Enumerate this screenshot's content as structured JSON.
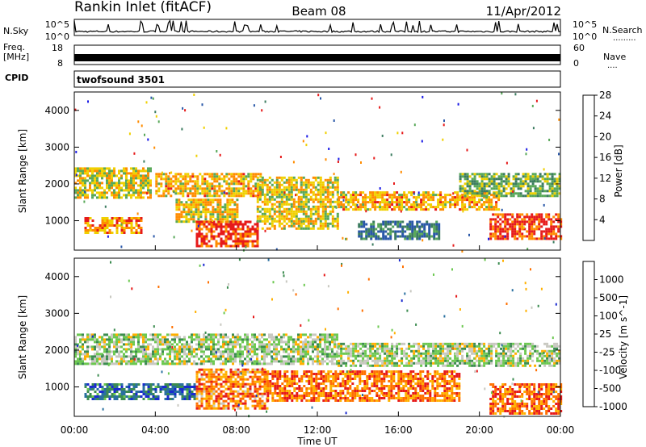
{
  "header": {
    "station": "Rankin Inlet (fitACF)",
    "beam": "Beam 08",
    "date": "11/Apr/2012"
  },
  "noise_panel": {
    "left_label": "N.Sky",
    "left_ticks": [
      "10^5",
      "10^0"
    ],
    "right_label": "N.Search",
    "right_ticks": [
      "10^5",
      "10^0"
    ]
  },
  "freq_panel": {
    "label_line1": "Freq.",
    "label_line2": "[MHz]",
    "left_ticks": [
      "18",
      "8"
    ],
    "right_label": "Nave",
    "right_ticks": [
      "60",
      "0"
    ]
  },
  "cpid_panel": {
    "label": "CPID",
    "program": "twofsound 3501"
  },
  "chart_data": [
    {
      "type": "heatmap",
      "panel": "power",
      "ylabel": "Slant Range [km]",
      "ylim": [
        200,
        4500
      ],
      "yticks": [
        "1000",
        "2000",
        "3000",
        "4000"
      ],
      "colorbar": {
        "label": "Power [dB]",
        "ticks": [
          "4",
          "8",
          "12",
          "16",
          "20",
          "24",
          "28"
        ],
        "colors": [
          "#1a1ae6",
          "#2a58a8",
          "#3c7c60",
          "#58a858",
          "#f0d000",
          "#ff8c00",
          "#e61a1a"
        ]
      },
      "echo_bands": [
        {
          "t0": 0.0,
          "t1": 3.8,
          "r0": 1600,
          "r1": 2450,
          "level": 0.62
        },
        {
          "t0": 0.5,
          "t1": 3.3,
          "r0": 650,
          "r1": 1100,
          "level": 0.78
        },
        {
          "t0": 4.0,
          "t1": 9.2,
          "r0": 1700,
          "r1": 2300,
          "level": 0.7
        },
        {
          "t0": 5.0,
          "t1": 8.0,
          "r0": 1000,
          "r1": 1600,
          "level": 0.66
        },
        {
          "t0": 6.0,
          "t1": 9.0,
          "r0": 300,
          "r1": 1000,
          "level": 0.92
        },
        {
          "t0": 9.0,
          "t1": 13.0,
          "r0": 800,
          "r1": 2200,
          "level": 0.64
        },
        {
          "t0": 13.0,
          "t1": 21.0,
          "r0": 1300,
          "r1": 1800,
          "level": 0.72
        },
        {
          "t0": 14.0,
          "t1": 18.0,
          "r0": 500,
          "r1": 1000,
          "level": 0.32
        },
        {
          "t0": 20.5,
          "t1": 24.0,
          "r0": 500,
          "r1": 1200,
          "level": 0.9
        },
        {
          "t0": 19.0,
          "t1": 24.0,
          "r0": 1700,
          "r1": 2300,
          "level": 0.5
        }
      ]
    },
    {
      "type": "heatmap",
      "panel": "velocity",
      "xlabel": "Time UT",
      "ylabel": "Slant Range [km]",
      "xlim": [
        0,
        24
      ],
      "xticks": [
        "00:00",
        "04:00",
        "08:00",
        "12:00",
        "16:00",
        "20:00",
        "00:00"
      ],
      "ylim": [
        200,
        4500
      ],
      "yticks": [
        "1000",
        "2000",
        "3000",
        "4000"
      ],
      "colorbar": {
        "label": "Velocity [m s^-1]",
        "ticks": [
          "1000",
          "500",
          "100",
          "25",
          "-25",
          "-100",
          "-500",
          "-1000"
        ],
        "colors": [
          "#1a2ad0",
          "#2a70a0",
          "#3c8c50",
          "#6cc850",
          "#c8c8c0",
          "#ffb000",
          "#ff7000",
          "#e61a1a"
        ]
      },
      "echo_bands": [
        {
          "t0": 0.0,
          "t1": 13.0,
          "r0": 1600,
          "r1": 2450,
          "level": 0.5
        },
        {
          "t0": 13.0,
          "t1": 24.0,
          "r0": 1600,
          "r1": 2200,
          "level": 0.5
        },
        {
          "t0": 0.5,
          "t1": 6.0,
          "r0": 650,
          "r1": 1100,
          "level": 0.22
        },
        {
          "t0": 6.0,
          "t1": 9.5,
          "r0": 400,
          "r1": 1500,
          "level": 0.78
        },
        {
          "t0": 9.5,
          "t1": 19.0,
          "r0": 600,
          "r1": 1450,
          "level": 0.8
        },
        {
          "t0": 20.5,
          "t1": 24.0,
          "r0": 300,
          "r1": 1100,
          "level": 0.82
        }
      ]
    }
  ]
}
